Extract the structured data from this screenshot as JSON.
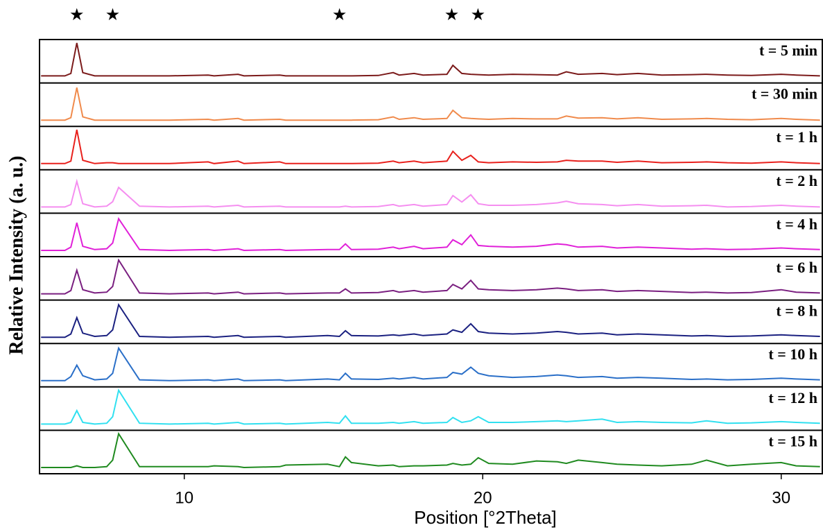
{
  "chart_data": {
    "type": "line",
    "xlabel": "Position [°2Theta]",
    "ylabel": "Relative Intensity (a. u.)",
    "xlim": [
      5.15,
      31.4
    ],
    "xticks": [
      10,
      20,
      30
    ],
    "ylim": [
      0,
      100
    ],
    "markers": [
      {
        "x": 6.4,
        "label": "★"
      },
      {
        "x": 7.6,
        "label": "★"
      },
      {
        "x": 15.2,
        "label": "★"
      },
      {
        "x": 18.96,
        "label": "★"
      },
      {
        "x": 19.84,
        "label": "★"
      }
    ],
    "x": [
      5.2,
      6.0,
      6.2,
      6.4,
      6.6,
      7.0,
      7.4,
      7.6,
      7.8,
      8.5,
      9.5,
      10.8,
      11.0,
      11.8,
      12.0,
      13.2,
      13.4,
      14.8,
      15.2,
      15.4,
      15.6,
      16.5,
      17.0,
      17.2,
      17.7,
      18.0,
      18.8,
      19.0,
      19.3,
      19.6,
      19.85,
      20.2,
      21.0,
      21.8,
      22.5,
      22.8,
      23.2,
      24.0,
      24.5,
      25.2,
      26.0,
      27.0,
      27.5,
      28.2,
      29.0,
      30.0,
      30.5,
      31.3
    ],
    "series": [
      {
        "name": "t = 5 min",
        "color": "#7b1a1a",
        "values": [
          14,
          14,
          20,
          95,
          22,
          14,
          14,
          14,
          14,
          14,
          14,
          16,
          14,
          18,
          14,
          16,
          14,
          14,
          14,
          14,
          14,
          15,
          22,
          16,
          20,
          16,
          18,
          40,
          20,
          18,
          17,
          16,
          18,
          17,
          16,
          24,
          18,
          20,
          17,
          20,
          16,
          17,
          18,
          16,
          15,
          18,
          16,
          14
        ]
      },
      {
        "name": "t = 30 min",
        "color": "#f08a4b",
        "values": [
          12,
          12,
          18,
          92,
          20,
          12,
          12,
          12,
          12,
          12,
          12,
          14,
          12,
          16,
          12,
          14,
          12,
          12,
          12,
          12,
          12,
          13,
          20,
          14,
          18,
          14,
          16,
          36,
          18,
          16,
          15,
          14,
          16,
          15,
          15,
          22,
          17,
          18,
          15,
          18,
          14,
          15,
          16,
          14,
          13,
          16,
          14,
          12
        ]
      },
      {
        "name": "t = 1 h",
        "color": "#e8201c",
        "values": [
          12,
          12,
          18,
          95,
          20,
          12,
          14,
          14,
          12,
          12,
          12,
          16,
          12,
          18,
          12,
          16,
          12,
          12,
          12,
          12,
          12,
          13,
          18,
          14,
          18,
          14,
          18,
          42,
          20,
          32,
          16,
          14,
          16,
          15,
          16,
          20,
          18,
          18,
          15,
          18,
          14,
          15,
          16,
          14,
          13,
          16,
          14,
          12
        ]
      },
      {
        "name": "t = 2 h",
        "color": "#f58ef0",
        "values": [
          12,
          12,
          18,
          75,
          20,
          12,
          14,
          25,
          60,
          14,
          12,
          14,
          12,
          16,
          12,
          14,
          12,
          12,
          12,
          14,
          12,
          13,
          18,
          14,
          18,
          14,
          18,
          40,
          24,
          42,
          20,
          16,
          16,
          18,
          22,
          26,
          20,
          18,
          15,
          18,
          14,
          15,
          16,
          12,
          13,
          16,
          14,
          12
        ]
      },
      {
        "name": "t = 4 h",
        "color": "#e020d8",
        "values": [
          12,
          12,
          20,
          80,
          22,
          14,
          16,
          30,
          90,
          14,
          12,
          14,
          12,
          16,
          12,
          14,
          12,
          14,
          14,
          28,
          14,
          15,
          20,
          16,
          22,
          16,
          20,
          38,
          26,
          50,
          24,
          22,
          20,
          22,
          28,
          26,
          20,
          22,
          18,
          20,
          18,
          15,
          16,
          14,
          15,
          18,
          16,
          14
        ]
      },
      {
        "name": "t = 6 h",
        "color": "#7a1f80",
        "values": [
          12,
          12,
          20,
          70,
          22,
          14,
          16,
          30,
          95,
          14,
          12,
          14,
          12,
          16,
          12,
          14,
          12,
          14,
          14,
          24,
          14,
          15,
          20,
          16,
          20,
          16,
          20,
          35,
          24,
          45,
          24,
          22,
          20,
          22,
          26,
          24,
          20,
          22,
          18,
          20,
          18,
          15,
          16,
          14,
          15,
          22,
          16,
          14
        ]
      },
      {
        "name": "t = 8 h",
        "color": "#1a2080",
        "values": [
          12,
          12,
          20,
          60,
          22,
          14,
          16,
          30,
          92,
          14,
          12,
          14,
          12,
          16,
          12,
          14,
          12,
          16,
          14,
          28,
          16,
          15,
          18,
          16,
          20,
          16,
          20,
          30,
          24,
          45,
          26,
          22,
          20,
          22,
          26,
          24,
          20,
          22,
          18,
          20,
          18,
          15,
          16,
          14,
          15,
          18,
          16,
          14
        ]
      },
      {
        "name": "t = 10 h",
        "color": "#2a6fc8",
        "values": [
          12,
          12,
          22,
          50,
          24,
          14,
          16,
          30,
          92,
          14,
          12,
          14,
          12,
          16,
          12,
          14,
          12,
          16,
          14,
          30,
          16,
          15,
          18,
          16,
          20,
          16,
          20,
          32,
          28,
          45,
          30,
          24,
          20,
          22,
          26,
          24,
          20,
          22,
          18,
          20,
          18,
          15,
          16,
          14,
          15,
          18,
          16,
          14
        ]
      },
      {
        "name": "t = 12 h",
        "color": "#30e0f0",
        "values": [
          12,
          12,
          16,
          45,
          16,
          12,
          14,
          30,
          95,
          14,
          12,
          14,
          12,
          16,
          12,
          14,
          12,
          16,
          14,
          32,
          14,
          14,
          16,
          14,
          18,
          14,
          16,
          28,
          16,
          20,
          30,
          16,
          16,
          18,
          20,
          18,
          20,
          24,
          16,
          18,
          16,
          15,
          20,
          14,
          15,
          18,
          16,
          14
        ]
      },
      {
        "name": "t = 15 h",
        "color": "#1f8a1f",
        "values": [
          12,
          12,
          12,
          16,
          12,
          12,
          14,
          30,
          95,
          14,
          14,
          14,
          16,
          14,
          12,
          14,
          18,
          20,
          14,
          38,
          24,
          16,
          18,
          14,
          16,
          16,
          18,
          22,
          18,
          20,
          36,
          22,
          20,
          28,
          26,
          22,
          30,
          24,
          20,
          18,
          16,
          20,
          30,
          16,
          20,
          24,
          16,
          14
        ]
      }
    ]
  }
}
